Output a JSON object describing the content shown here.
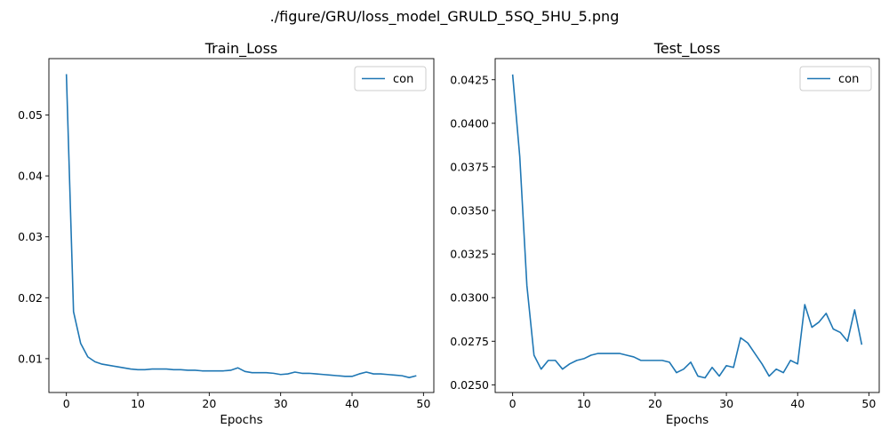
{
  "figure": {
    "suptitle": "./figure/GRU/loss_model_GRULD_5SQ_5HU_5.png"
  },
  "chart_data": [
    {
      "type": "line",
      "title": "Train_Loss",
      "xlabel": "Epochs",
      "ylabel": "",
      "xlim": [
        -2.45,
        51.45
      ],
      "ylim": [
        0.00445,
        0.05925
      ],
      "xticks": [
        0,
        10,
        20,
        30,
        40,
        50
      ],
      "xtick_labels": [
        "0",
        "10",
        "20",
        "30",
        "40",
        "50"
      ],
      "yticks": [
        0.01,
        0.02,
        0.03,
        0.04,
        0.05
      ],
      "ytick_labels": [
        "0.01",
        "0.02",
        "0.03",
        "0.04",
        "0.05"
      ],
      "grid": false,
      "legend": "top-right",
      "color": "#1f77b4",
      "series": [
        {
          "name": "con",
          "x": [
            0,
            1,
            2,
            3,
            4,
            5,
            6,
            7,
            8,
            9,
            10,
            11,
            12,
            13,
            14,
            15,
            16,
            17,
            18,
            19,
            20,
            21,
            22,
            23,
            24,
            25,
            26,
            27,
            28,
            29,
            30,
            31,
            32,
            33,
            34,
            35,
            36,
            37,
            38,
            39,
            40,
            41,
            42,
            43,
            44,
            45,
            46,
            47,
            48,
            49
          ],
          "y": [
            0.0567,
            0.0177,
            0.0125,
            0.0103,
            0.0095,
            0.0091,
            0.0089,
            0.0087,
            0.0085,
            0.0083,
            0.0082,
            0.0082,
            0.0083,
            0.0083,
            0.0083,
            0.0082,
            0.0082,
            0.0081,
            0.0081,
            0.008,
            0.008,
            0.008,
            0.008,
            0.0081,
            0.0085,
            0.0079,
            0.0077,
            0.0077,
            0.0077,
            0.0076,
            0.0074,
            0.0075,
            0.0078,
            0.0076,
            0.0076,
            0.0075,
            0.0074,
            0.0073,
            0.0072,
            0.0071,
            0.0071,
            0.0075,
            0.0078,
            0.0075,
            0.0075,
            0.0074,
            0.0073,
            0.0072,
            0.0069,
            0.0072
          ]
        }
      ]
    },
    {
      "type": "line",
      "title": "Test_Loss",
      "xlabel": "Epochs",
      "ylabel": "",
      "xlim": [
        -2.45,
        51.45
      ],
      "ylim": [
        0.02456,
        0.04371
      ],
      "xticks": [
        0,
        10,
        20,
        30,
        40,
        50
      ],
      "xtick_labels": [
        "0",
        "10",
        "20",
        "30",
        "40",
        "50"
      ],
      "yticks": [
        0.025,
        0.0275,
        0.03,
        0.0325,
        0.035,
        0.0375,
        0.04,
        0.0425
      ],
      "ytick_labels": [
        "0.0250",
        "0.0275",
        "0.0300",
        "0.0325",
        "0.0350",
        "0.0375",
        "0.0400",
        "0.0425"
      ],
      "grid": false,
      "legend": "top-right",
      "color": "#1f77b4",
      "series": [
        {
          "name": "con",
          "x": [
            0,
            1,
            2,
            3,
            4,
            5,
            6,
            7,
            8,
            9,
            10,
            11,
            12,
            13,
            14,
            15,
            16,
            17,
            18,
            19,
            20,
            21,
            22,
            23,
            24,
            25,
            26,
            27,
            28,
            29,
            30,
            31,
            32,
            33,
            34,
            35,
            36,
            37,
            38,
            39,
            40,
            41,
            42,
            43,
            44,
            45,
            46,
            47,
            48,
            49
          ],
          "y": [
            0.0428,
            0.0381,
            0.0307,
            0.0267,
            0.0259,
            0.0264,
            0.0264,
            0.0259,
            0.0262,
            0.0264,
            0.0265,
            0.0267,
            0.0268,
            0.0268,
            0.0268,
            0.0268,
            0.0267,
            0.0266,
            0.0264,
            0.0264,
            0.0264,
            0.0264,
            0.0263,
            0.0257,
            0.0259,
            0.0263,
            0.0255,
            0.0254,
            0.026,
            0.0255,
            0.0261,
            0.026,
            0.0277,
            0.0274,
            0.0268,
            0.0262,
            0.0255,
            0.0259,
            0.0257,
            0.0264,
            0.0262,
            0.0296,
            0.0283,
            0.0286,
            0.0291,
            0.0282,
            0.028,
            0.0275,
            0.0293,
            0.0273
          ]
        }
      ]
    }
  ]
}
